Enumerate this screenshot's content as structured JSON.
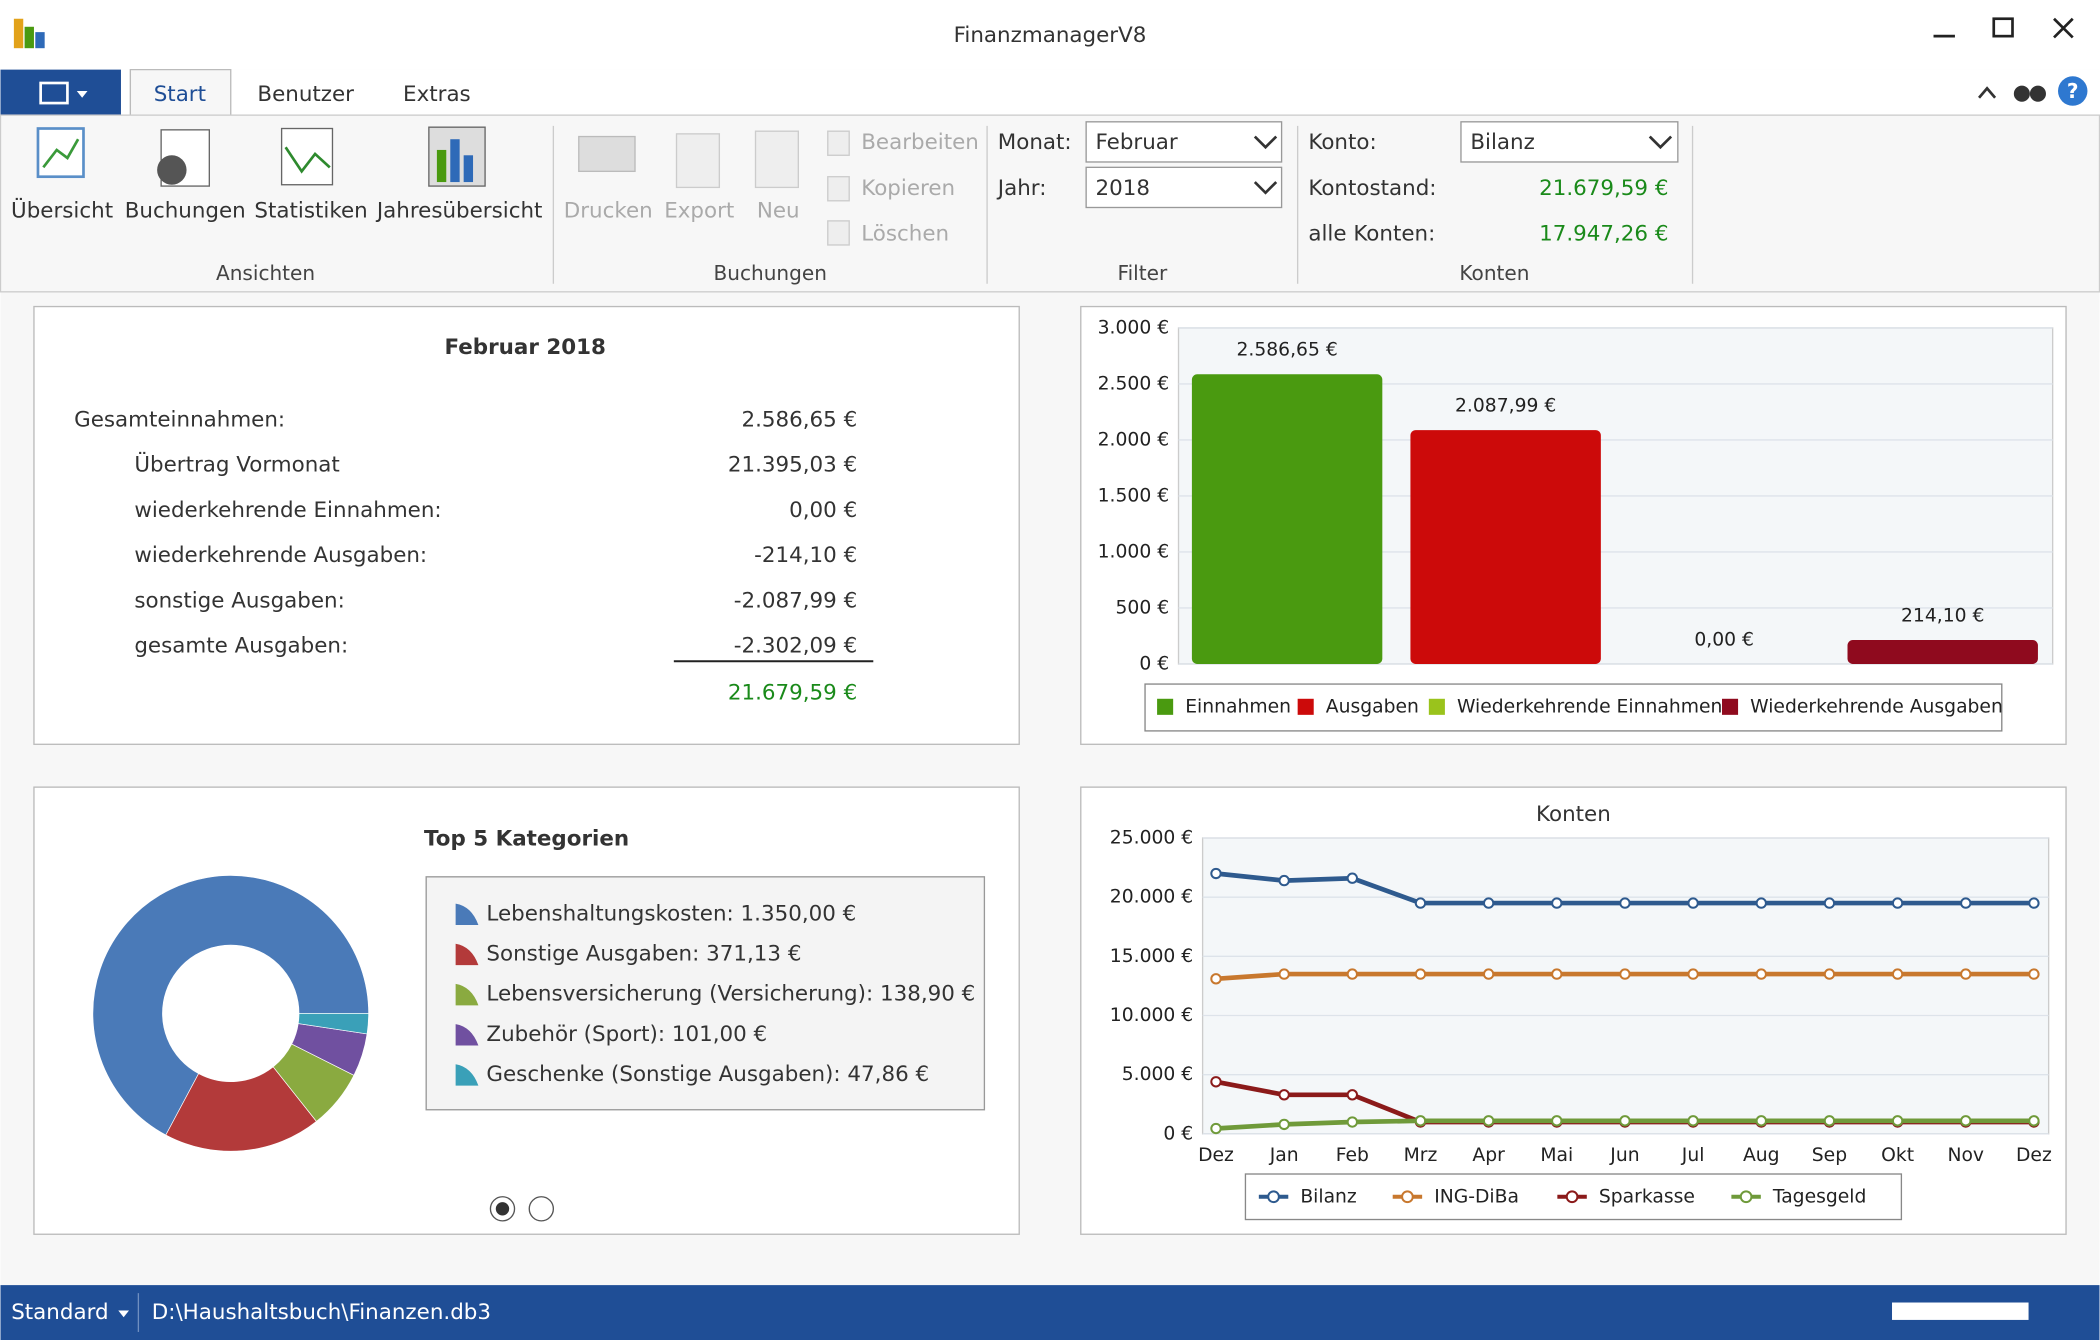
{
  "window": {
    "title": "FinanzmanagerV8"
  },
  "tabs": [
    "Start",
    "Benutzer",
    "Extras"
  ],
  "ribbon": {
    "ansichten": {
      "label": "Ansichten",
      "buttons": [
        "Übersicht",
        "Buchungen",
        "Statistiken",
        "Jahresübersicht"
      ]
    },
    "buchungen": {
      "label": "Buchungen",
      "buttons": [
        "Drucken",
        "Export",
        "Neu"
      ],
      "small": [
        "Bearbeiten",
        "Kopieren",
        "Löschen"
      ]
    },
    "filter": {
      "label": "Filter",
      "monat_label": "Monat:",
      "monat": "Februar",
      "jahr_label": "Jahr:",
      "jahr": "2018"
    },
    "konten": {
      "label": "Konten",
      "konto_label": "Konto:",
      "konto": "Bilanz",
      "kontostand_label": "Kontostand:",
      "kontostand": "21.679,59 €",
      "alle_label": "alle Konten:",
      "alle": "17.947,26 €"
    }
  },
  "summary": {
    "title": "Februar 2018",
    "rows": [
      {
        "label": "Gesamteinnahmen:",
        "value": "2.586,65 €"
      },
      {
        "label": "Übertrag Vormonat",
        "value": "21.395,03 €"
      },
      {
        "label": "wiederkehrende Einnahmen:",
        "value": "0,00 €"
      },
      {
        "label": "wiederkehrende Ausgaben:",
        "value": "-214,10 €"
      },
      {
        "label": "sonstige Ausgaben:",
        "value": "-2.087,99 €"
      },
      {
        "label": "gesamte Ausgaben:",
        "value": "-2.302,09 €"
      }
    ],
    "total": "21.679,59 €"
  },
  "chart_data": [
    {
      "type": "bar",
      "ylim": [
        0,
        3000
      ],
      "yticks": [
        {
          "value": 0,
          "label": "0 €"
        },
        {
          "value": 500,
          "label": "500 €"
        },
        {
          "value": 1000,
          "label": "1.000 €"
        },
        {
          "value": 1500,
          "label": "1.500 €"
        },
        {
          "value": 2000,
          "label": "2.000 €"
        },
        {
          "value": 2500,
          "label": "2.500 €"
        },
        {
          "value": 3000,
          "label": "3.000 €"
        }
      ],
      "grid": true,
      "series": [
        {
          "name": "Einnahmen",
          "color": "#4a9a10",
          "values": [
            2586.65
          ],
          "value_labels": [
            "2.586,65 €"
          ]
        },
        {
          "name": "Ausgaben",
          "color": "#cc0a0a",
          "values": [
            2087.99
          ],
          "value_labels": [
            "2.087,99 €"
          ]
        },
        {
          "name": "Wiederkehrende Einnahmen",
          "color": "#9ac31c",
          "values": [
            0
          ],
          "value_labels": [
            "0,00 €"
          ]
        },
        {
          "name": "Wiederkehrende Ausgaben",
          "color": "#8f0a1e",
          "values": [
            214.1
          ],
          "value_labels": [
            "214,10 €"
          ]
        }
      ]
    },
    {
      "type": "pie",
      "title": "Top 5 Kategorien",
      "categories": [
        "Lebenshaltungskosten: 1.350,00 €",
        "Sonstige Ausgaben: 371,13 €",
        "Lebensversicherung (Versicherung): 138,90 €",
        "Zubehör (Sport): 101,00 €",
        "Geschenke (Sonstige Ausgaben): 47,86 €"
      ],
      "values": [
        1350.0,
        371.13,
        138.9,
        101.0,
        47.86
      ],
      "colors": [
        "#4a7ab8",
        "#b33a3a",
        "#8aaa40",
        "#7050a0",
        "#3aa0b8"
      ]
    },
    {
      "type": "line",
      "title": "Konten",
      "categories": [
        "Dez",
        "Jan",
        "Feb",
        "Mrz",
        "Apr",
        "Mai",
        "Jun",
        "Jul",
        "Aug",
        "Sep",
        "Okt",
        "Nov",
        "Dez"
      ],
      "ylim": [
        0,
        25000
      ],
      "yticks": [
        {
          "value": 0,
          "label": "0 €"
        },
        {
          "value": 5000,
          "label": "5.000 €"
        },
        {
          "value": 10000,
          "label": "10.000 €"
        },
        {
          "value": 15000,
          "label": "15.000 €"
        },
        {
          "value": 20000,
          "label": "20.000 €"
        },
        {
          "value": 25000,
          "label": "25.000 €"
        }
      ],
      "grid": true,
      "series": [
        {
          "name": "Bilanz",
          "color": "#2e5a8e",
          "values": [
            22000,
            21400,
            21600,
            19500,
            19500,
            19500,
            19500,
            19500,
            19500,
            19500,
            19500,
            19500,
            19500
          ]
        },
        {
          "name": "ING-DiBa",
          "color": "#c8782e",
          "values": [
            13100,
            13500,
            13500,
            13500,
            13500,
            13500,
            13500,
            13500,
            13500,
            13500,
            13500,
            13500,
            13500
          ]
        },
        {
          "name": "Sparkasse",
          "color": "#8b1a1a",
          "values": [
            4400,
            3300,
            3300,
            1000,
            1000,
            1000,
            1000,
            1000,
            1000,
            1000,
            1000,
            1000,
            1000
          ]
        },
        {
          "name": "Tagesgeld",
          "color": "#6f9a3a",
          "values": [
            450,
            800,
            1000,
            1100,
            1100,
            1100,
            1100,
            1100,
            1100,
            1100,
            1100,
            1100,
            1100
          ]
        }
      ]
    }
  ],
  "statusbar": {
    "profile": "Standard",
    "path": "D:\\Haushaltsbuch\\Finanzen.db3"
  }
}
